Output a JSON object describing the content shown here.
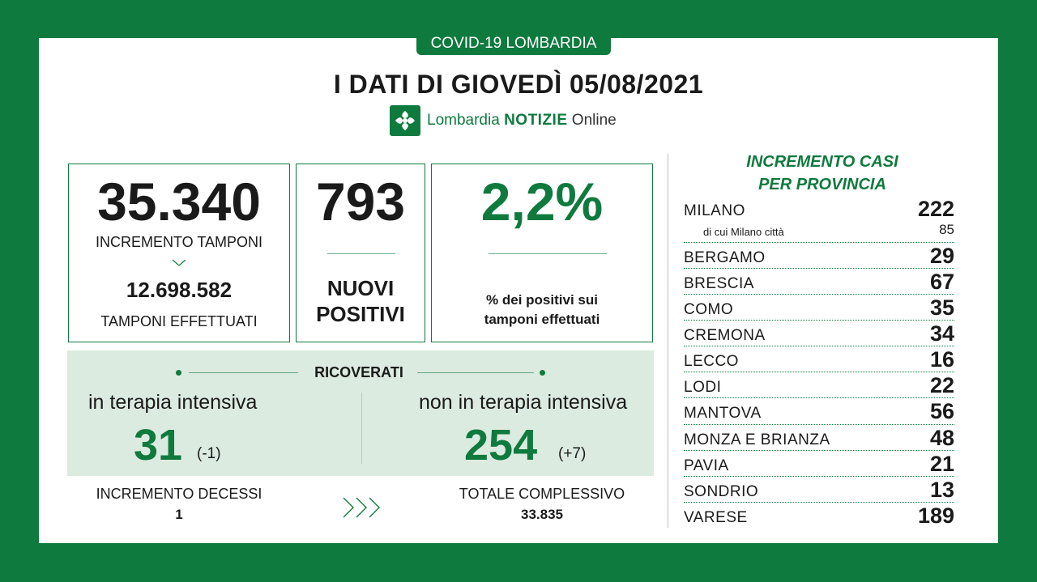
{
  "header": {
    "tab": "COVID-19 LOMBARDIA",
    "title": "I DATI DI GIOVEDÌ 05/08/2021",
    "logo_prefix": "Lombardia",
    "logo_main": "NOTIZIE",
    "logo_suffix": "Online"
  },
  "tamponi": {
    "increment": "35.340",
    "increment_label": "INCREMENTO TAMPONI",
    "total": "12.698.582",
    "total_label": "TAMPONI EFFETTUATI"
  },
  "positivi": {
    "value": "793",
    "label_line1": "NUOVI",
    "label_line2": "POSITIVI"
  },
  "percent": {
    "value": "2,2%",
    "label_line1": "% dei positivi sui",
    "label_line2": "tamponi effettuati"
  },
  "ricoverati": {
    "title": "RICOVERATI",
    "ti_label": "in terapia intensiva",
    "ti_value": "31",
    "ti_delta": "(-1)",
    "nti_label": "non in terapia intensiva",
    "nti_value": "254",
    "nti_delta": "(+7)"
  },
  "decessi": {
    "label": "INCREMENTO DECESSI",
    "value": "1",
    "total_label": "TOTALE COMPLESSIVO",
    "total_value": "33.835"
  },
  "province": {
    "title_line1": "INCREMENTO CASI",
    "title_line2": "PER PROVINCIA",
    "milano_sub_label": "di cui Milano città",
    "milano_sub_value": "85",
    "rows": [
      {
        "name": "MILANO",
        "value": "222"
      },
      {
        "name": "BERGAMO",
        "value": "29"
      },
      {
        "name": "BRESCIA",
        "value": "67"
      },
      {
        "name": "COMO",
        "value": "35"
      },
      {
        "name": "CREMONA",
        "value": "34"
      },
      {
        "name": "LECCO",
        "value": "16"
      },
      {
        "name": "LODI",
        "value": "22"
      },
      {
        "name": "MANTOVA",
        "value": "56"
      },
      {
        "name": "MONZA E BRIANZA",
        "value": "48"
      },
      {
        "name": "PAVIA",
        "value": "21"
      },
      {
        "name": "SONDRIO",
        "value": "13"
      },
      {
        "name": "VARESE",
        "value": "189"
      }
    ]
  },
  "colors": {
    "brand": "#0f7a3e",
    "panel": "#dcebe0"
  }
}
